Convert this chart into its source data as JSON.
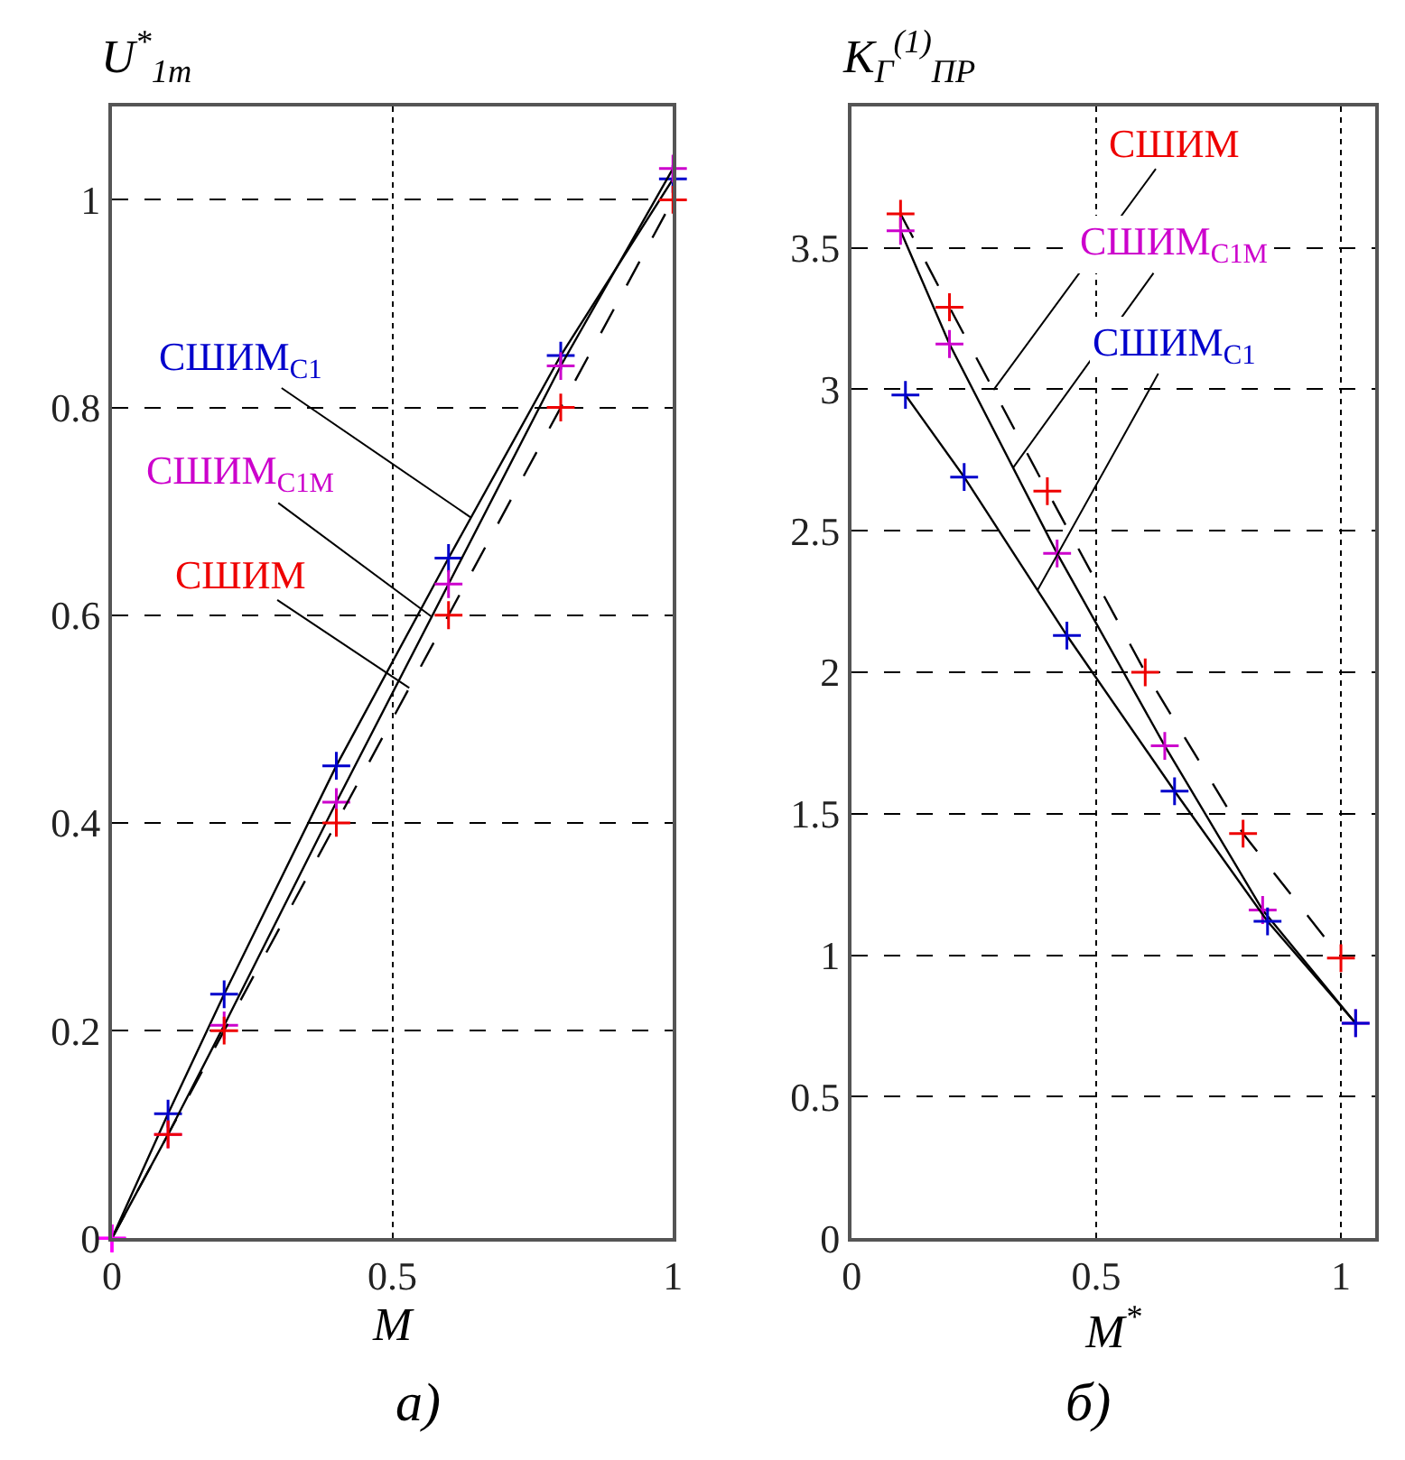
{
  "chart_data": [
    {
      "type": "line",
      "ylabel": "U$^{*}$$_{1m}$",
      "xlabel": "M",
      "xlim": [
        0,
        1
      ],
      "ylim": [
        0,
        1.09
      ],
      "xticks": [
        0,
        0.5,
        1
      ],
      "yticks": [
        0,
        0.2,
        0.4,
        0.6,
        0.8,
        1
      ],
      "grid": true,
      "marker": "cross",
      "annotations": [
        "а)"
      ],
      "series": [
        {
          "name": "СШИМ$_{C1}$",
          "color": "#000000",
          "colors": [
            "#ff00ff",
            "#0000cc",
            "#0000cc",
            "#0000cc",
            "#0000cc",
            "#0000cc",
            "#0000cc"
          ],
          "line_style": "solid",
          "x": [
            0,
            0.1,
            0.2,
            0.4,
            0.6,
            0.8,
            1
          ],
          "values": [
            0,
            0.12,
            0.235,
            0.455,
            0.655,
            0.85,
            1.02
          ]
        },
        {
          "name": "СШИМ$_{C1M}$",
          "color": "#000000",
          "colors": [
            "#ff00ff",
            "#cc00cc",
            "#cc00cc",
            "#cc00cc",
            "#cc00cc",
            "#cc00cc",
            "#cc00cc"
          ],
          "line_style": "solid",
          "x": [
            0,
            0.1,
            0.2,
            0.4,
            0.6,
            0.8,
            1
          ],
          "values": [
            0,
            0.1,
            0.205,
            0.42,
            0.63,
            0.84,
            1.03
          ]
        },
        {
          "name": "СШИМ",
          "color": "#000000",
          "colors": [
            "#ff00ff",
            "#ee0000",
            "#ee0000",
            "#ee0000",
            "#ee0000",
            "#ee0000",
            "#ee0000"
          ],
          "line_style": "dashed",
          "x": [
            0,
            0.1,
            0.2,
            0.4,
            0.6,
            0.8,
            1
          ],
          "values": [
            0,
            0.1,
            0.2,
            0.4,
            0.6,
            0.8,
            1.0
          ]
        }
      ]
    },
    {
      "type": "line",
      "ylabel": "K$_{Г}$$^{(1)}$$_{ПР}$",
      "xlabel": "M$^{*}$",
      "xlim": [
        0,
        1.07
      ],
      "ylim": [
        0,
        4
      ],
      "xticks": [
        0,
        0.5,
        1
      ],
      "yticks": [
        0,
        0.5,
        1,
        1.5,
        2,
        2.5,
        3,
        3.5
      ],
      "grid": true,
      "marker": "cross",
      "annotations": [
        "б)"
      ],
      "series": [
        {
          "name": "СШИМ",
          "color": "#000000",
          "colors": [
            "#ee0000",
            "#ee0000",
            "#ee0000",
            "#ee0000",
            "#ee0000",
            "#ee0000"
          ],
          "line_style": "dashed",
          "x": [
            0.1,
            0.2,
            0.4,
            0.6,
            0.8,
            1.0
          ],
          "values": [
            3.62,
            3.29,
            2.64,
            2.0,
            1.43,
            0.99
          ]
        },
        {
          "name": "СШИМ$_{C1M}$",
          "color": "#000000",
          "colors": [
            "#cc00cc",
            "#cc00cc",
            "#cc00cc",
            "#cc00cc",
            "#cc00cc",
            "#cc00cc"
          ],
          "line_style": "solid",
          "x": [
            0.1,
            0.2,
            0.42,
            0.64,
            0.84,
            1.03
          ],
          "values": [
            3.56,
            3.16,
            2.42,
            1.74,
            1.16,
            0.76
          ]
        },
        {
          "name": "СШИМ$_{C1}$",
          "color": "#000000",
          "colors": [
            "#0000cc",
            "#0000cc",
            "#0000cc",
            "#0000cc",
            "#0000cc",
            "#0000cc"
          ],
          "line_style": "solid",
          "x": [
            0.11,
            0.23,
            0.44,
            0.66,
            0.85,
            1.03
          ],
          "values": [
            2.98,
            2.69,
            2.13,
            1.58,
            1.12,
            0.76
          ]
        }
      ]
    }
  ]
}
